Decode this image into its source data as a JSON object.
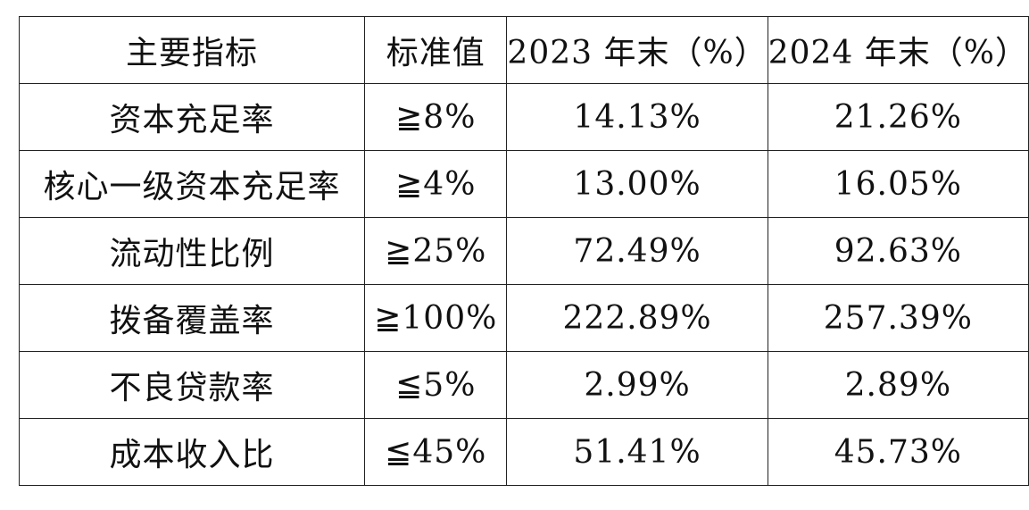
{
  "table": {
    "headers": [
      "主要指标",
      "标准值",
      "2023 年末（%）",
      "2024 年末（%）"
    ],
    "rows": [
      [
        "资本充足率",
        "≧8%",
        "14.13%",
        "21.26%"
      ],
      [
        "核心一级资本充足率",
        "≧4%",
        "13.00%",
        "16.05%"
      ],
      [
        "流动性比例",
        "≧25%",
        "72.49%",
        "92.63%"
      ],
      [
        "拨备覆盖率",
        "≧100%",
        "222.89%",
        "257.39%"
      ],
      [
        "不良贷款率",
        "≦5%",
        "2.99%",
        "2.89%"
      ],
      [
        "成本收入比",
        "≦45%",
        "51.41%",
        "45.73%"
      ]
    ]
  }
}
